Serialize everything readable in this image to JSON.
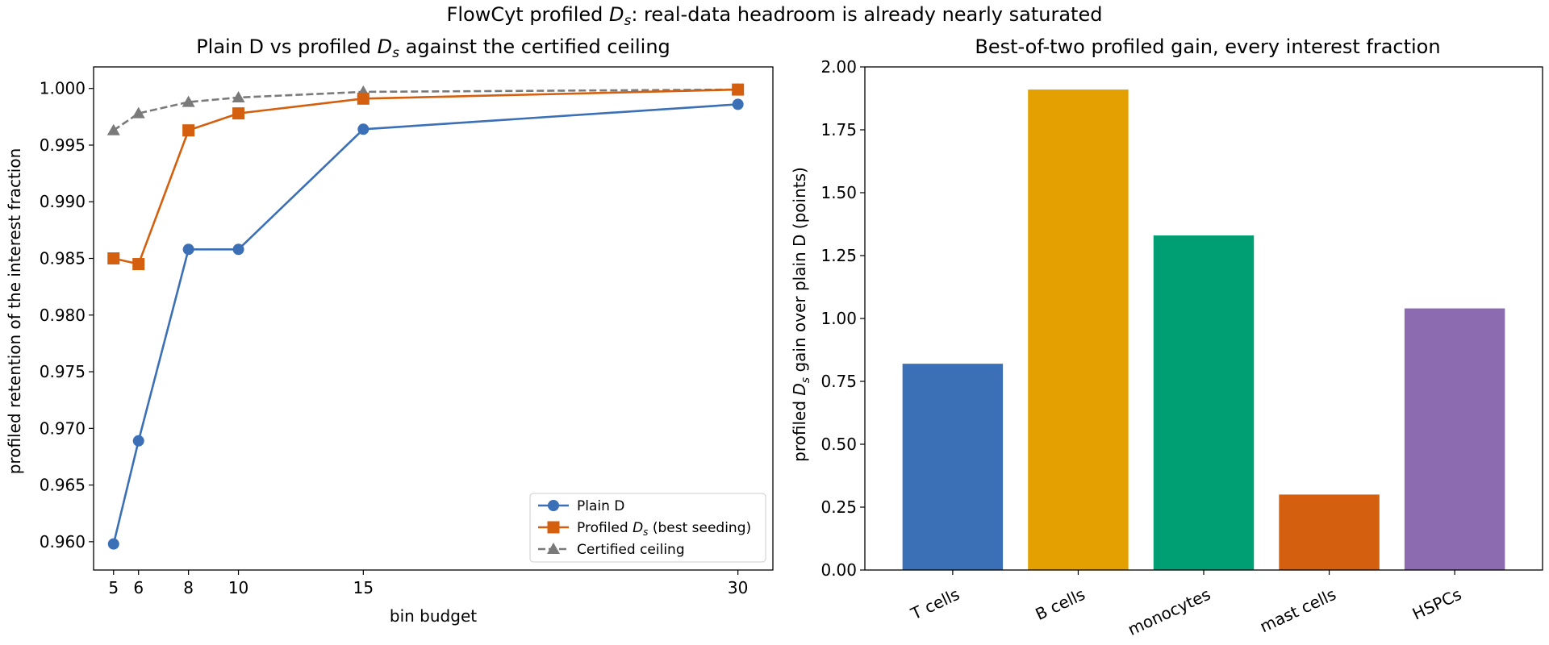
{
  "figure": {
    "suptitle_prefix": "FlowCyt profiled ",
    "suptitle_sym": "D",
    "suptitle_sub": "s",
    "suptitle_suffix": ": real-data headroom is already nearly saturated"
  },
  "chart_data": [
    {
      "type": "line",
      "title_prefix": "Plain D vs profiled ",
      "title_sym": "D",
      "title_sub": "s",
      "title_suffix": " against the certified ceiling",
      "xlabel": "bin budget",
      "ylabel": "profiled retention of the interest fraction",
      "x": [
        5,
        6,
        8,
        10,
        15,
        30
      ],
      "xlim": [
        4.2,
        31.4
      ],
      "ylim": [
        0.9575,
        1.0019
      ],
      "yticks": [
        "0.960",
        "0.965",
        "0.970",
        "0.975",
        "0.980",
        "0.985",
        "0.990",
        "0.995",
        "1.000"
      ],
      "xticks": [
        "5",
        "6",
        "8",
        "10",
        "15",
        "30"
      ],
      "legend_position": "lower-right",
      "series": [
        {
          "name": "Plain D",
          "legend_prefix": "Plain D",
          "legend_sym": "",
          "legend_sub": "",
          "legend_suffix": "",
          "color": "#3b6fb6",
          "marker": "circle",
          "dashed": false,
          "values": [
            0.9598,
            0.9689,
            0.9858,
            0.9858,
            0.9964,
            0.9986
          ]
        },
        {
          "name": "Profiled Ds (best seeding)",
          "legend_prefix": "Profiled ",
          "legend_sym": "D",
          "legend_sub": "s",
          "legend_suffix": " (best seeding)",
          "color": "#d45f0e",
          "marker": "square",
          "dashed": false,
          "values": [
            0.985,
            0.9845,
            0.9963,
            0.9978,
            0.9991,
            0.9999
          ]
        },
        {
          "name": "Certified ceiling",
          "legend_prefix": "Certified ceiling",
          "legend_sym": "",
          "legend_sub": "",
          "legend_suffix": "",
          "color": "#7a7a7a",
          "marker": "triangle",
          "dashed": true,
          "values": [
            0.9963,
            0.9978,
            0.9988,
            0.9992,
            0.9997,
            0.9999
          ]
        }
      ]
    },
    {
      "type": "bar",
      "title": "Best-of-two profiled gain, every interest fraction",
      "ylabel_prefix": "profiled ",
      "ylabel_sym": "D",
      "ylabel_sub": "s",
      "ylabel_suffix": " gain over plain D (points)",
      "categories": [
        "T cells",
        "B cells",
        "monocytes",
        "mast cells",
        "HSPCs"
      ],
      "values": [
        0.82,
        1.91,
        1.33,
        0.3,
        1.04
      ],
      "colors": [
        "#3b6fb6",
        "#e3a000",
        "#009e73",
        "#d45f0e",
        "#8c6bb1"
      ],
      "ylim": [
        0,
        2.0
      ],
      "yticks": [
        "0.00",
        "0.25",
        "0.50",
        "0.75",
        "1.00",
        "1.25",
        "1.50",
        "1.75",
        "2.00"
      ]
    }
  ]
}
